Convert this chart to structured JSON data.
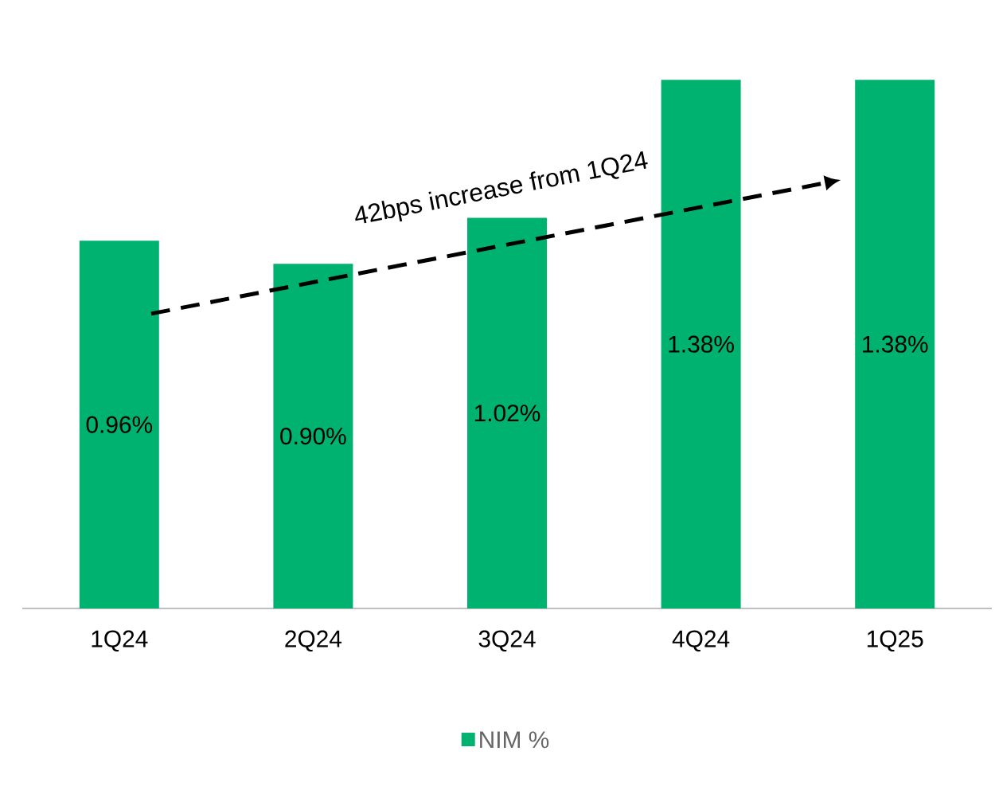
{
  "chart_data": {
    "type": "bar",
    "categories": [
      "1Q24",
      "2Q24",
      "3Q24",
      "4Q24",
      "1Q25"
    ],
    "series": [
      {
        "name": "NIM %",
        "color": "#00b26f",
        "values": [
          0.96,
          0.9,
          1.02,
          1.38,
          1.38
        ],
        "value_labels": [
          "0.96%",
          "0.90%",
          "1.02%",
          "1.38%",
          "1.38%"
        ]
      }
    ],
    "annotations": [
      "42bps increase from 1Q24"
    ],
    "legend": "bottom"
  }
}
